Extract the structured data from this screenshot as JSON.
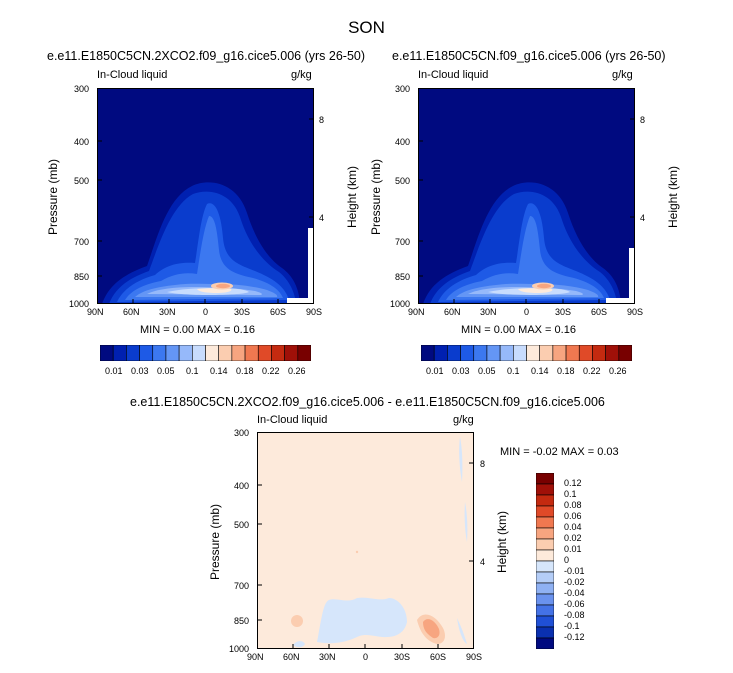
{
  "page": {
    "title": "SON"
  },
  "panels": [
    {
      "title": "e.e11.E1850C5CN.2XCO2.f09_g16.cice5.006 (yrs 26-50)",
      "var_label": "In-Cloud liquid",
      "units": "g/kg",
      "ylabel": "Pressure (mb)",
      "y2label": "Height (km)",
      "minmax": "MIN =   0.00  MAX =   0.16"
    },
    {
      "title": "e.e11.E1850C5CN.f09_g16.cice5.006 (yrs 26-50)",
      "var_label": "In-Cloud liquid",
      "units": "g/kg",
      "ylabel": "Pressure (mb)",
      "y2label": "Height (km)",
      "minmax": "MIN =   0.00  MAX =   0.16"
    },
    {
      "title": "e.e11.E1850C5CN.2XCO2.f09_g16.cice5.006 - e.e11.E1850C5CN.f09_g16.cice5.006",
      "var_label": "In-Cloud liquid",
      "units": "g/kg",
      "ylabel": "Pressure (mb)",
      "y2label": "Height (km)",
      "minmax": "MIN =  -0.02  MAX =   0.03"
    }
  ],
  "chart_data": [
    {
      "type": "heatmap",
      "title": "e.e11.E1850C5CN.2XCO2.f09_g16.cice5.006 (yrs 26-50)",
      "subtitle_left": "In-Cloud liquid",
      "subtitle_right": "g/kg",
      "xlabel": "",
      "ylabel": "Pressure (mb)",
      "y2label": "Height (km)",
      "x_ticks": [
        "90N",
        "60N",
        "30N",
        "0",
        "30S",
        "60S",
        "90S"
      ],
      "y_ticks": [
        "300",
        "400",
        "500",
        "700",
        "850",
        "1000"
      ],
      "y2_ticks": [
        "8",
        "4"
      ],
      "y_scale": "log",
      "min": 0.0,
      "max": 0.16,
      "colorbar": {
        "orientation": "horizontal",
        "labels": [
          "0.01",
          "0.03",
          "0.05",
          "0.1",
          "0.14",
          "0.18",
          "0.22",
          "0.26"
        ],
        "colors": [
          "#000a80",
          "#0020b0",
          "#0a3ccd",
          "#1e5ae6",
          "#3c78f0",
          "#6496f5",
          "#96b9fa",
          "#c8dcfd",
          "#fdeadb",
          "#fbcdb0",
          "#f7a580",
          "#f07850",
          "#e04a28",
          "#c42a10",
          "#a01008",
          "#780000"
        ]
      }
    },
    {
      "type": "heatmap",
      "title": "e.e11.E1850C5CN.f09_g16.cice5.006 (yrs 26-50)",
      "subtitle_left": "In-Cloud liquid",
      "subtitle_right": "g/kg",
      "xlabel": "",
      "ylabel": "Pressure (mb)",
      "y2label": "Height (km)",
      "x_ticks": [
        "90N",
        "60N",
        "30N",
        "0",
        "30S",
        "60S",
        "90S"
      ],
      "y_ticks": [
        "300",
        "400",
        "500",
        "700",
        "850",
        "1000"
      ],
      "y2_ticks": [
        "8",
        "4"
      ],
      "y_scale": "log",
      "min": 0.0,
      "max": 0.16,
      "colorbar": {
        "orientation": "horizontal",
        "labels": [
          "0.01",
          "0.03",
          "0.05",
          "0.1",
          "0.14",
          "0.18",
          "0.22",
          "0.26"
        ],
        "colors": [
          "#000a80",
          "#0020b0",
          "#0a3ccd",
          "#1e5ae6",
          "#3c78f0",
          "#6496f5",
          "#96b9fa",
          "#c8dcfd",
          "#fdeadb",
          "#fbcdb0",
          "#f7a580",
          "#f07850",
          "#e04a28",
          "#c42a10",
          "#a01008",
          "#780000"
        ]
      }
    },
    {
      "type": "heatmap",
      "title": "e.e11.E1850C5CN.2XCO2.f09_g16.cice5.006 - e.e11.E1850C5CN.f09_g16.cice5.006",
      "subtitle_left": "In-Cloud liquid",
      "subtitle_right": "g/kg",
      "xlabel": "",
      "ylabel": "Pressure (mb)",
      "y2label": "Height (km)",
      "x_ticks": [
        "90N",
        "60N",
        "30N",
        "0",
        "30S",
        "60S",
        "90S"
      ],
      "y_ticks": [
        "300",
        "400",
        "500",
        "700",
        "850",
        "1000"
      ],
      "y2_ticks": [
        "8",
        "4"
      ],
      "y_scale": "log",
      "min": -0.02,
      "max": 0.03,
      "colorbar": {
        "orientation": "vertical",
        "labels": [
          "0.12",
          "0.1",
          "0.08",
          "0.06",
          "0.04",
          "0.02",
          "0.01",
          "0",
          "-0.01",
          "-0.02",
          "-0.04",
          "-0.06",
          "-0.08",
          "-0.1",
          "-0.12"
        ],
        "colors": [
          "#780000",
          "#a01008",
          "#c42a10",
          "#e04a28",
          "#f07850",
          "#f7a580",
          "#fbcdb0",
          "#fdeadb",
          "#d6e6fb",
          "#b4cdf7",
          "#8fb1f3",
          "#6a92ee",
          "#4472e6",
          "#2050d6",
          "#0a30b0",
          "#000a80"
        ]
      }
    }
  ]
}
